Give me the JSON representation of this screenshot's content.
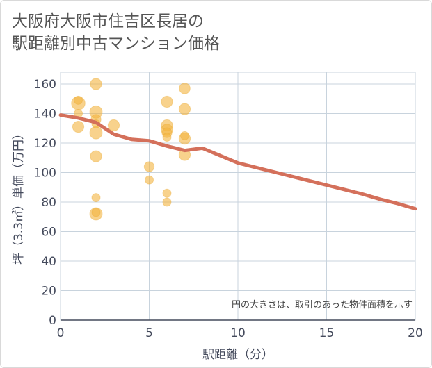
{
  "title_lines": [
    "大阪府大阪市住吉区長居の",
    "駅距離別中古マンション価格"
  ],
  "colors": {
    "bubble_fill": "#f3b440",
    "bubble_stroke": "#e9a52c",
    "line": "#d4705b",
    "grid": "#c8d3dd",
    "axis": "#444a5c"
  },
  "chart_data": {
    "type": "scatter",
    "xlabel": "駅距離（分）",
    "ylabel": "坪（3.3㎡）単価（万円）",
    "xlim": [
      0,
      20
    ],
    "ylim": [
      0,
      168
    ],
    "xticks": [
      0,
      5,
      10,
      15,
      20
    ],
    "yticks": [
      0,
      20,
      40,
      60,
      80,
      100,
      120,
      140,
      160
    ],
    "note": "円の大きさは、取引のあった物件面積を示す",
    "bubbles": [
      {
        "x": 1,
        "y": 147,
        "size": 3
      },
      {
        "x": 1,
        "y": 149,
        "size": 1
      },
      {
        "x": 1,
        "y": 140,
        "size": 1
      },
      {
        "x": 1,
        "y": 131,
        "size": 2
      },
      {
        "x": 2,
        "y": 160,
        "size": 2
      },
      {
        "x": 2,
        "y": 141,
        "size": 2.5
      },
      {
        "x": 2,
        "y": 136,
        "size": 1.5
      },
      {
        "x": 2,
        "y": 133,
        "size": 1
      },
      {
        "x": 2,
        "y": 127,
        "size": 2.5
      },
      {
        "x": 2,
        "y": 111,
        "size": 2
      },
      {
        "x": 2,
        "y": 83,
        "size": 1
      },
      {
        "x": 2,
        "y": 72,
        "size": 2.5
      },
      {
        "x": 2,
        "y": 73,
        "size": 1
      },
      {
        "x": 3,
        "y": 132,
        "size": 2
      },
      {
        "x": 5,
        "y": 104,
        "size": 1.5
      },
      {
        "x": 5,
        "y": 95,
        "size": 1
      },
      {
        "x": 6,
        "y": 148,
        "size": 2
      },
      {
        "x": 6,
        "y": 132,
        "size": 2
      },
      {
        "x": 6,
        "y": 129,
        "size": 2
      },
      {
        "x": 6,
        "y": 127,
        "size": 1.5
      },
      {
        "x": 6,
        "y": 124,
        "size": 1
      },
      {
        "x": 6,
        "y": 86,
        "size": 1
      },
      {
        "x": 6,
        "y": 80,
        "size": 1
      },
      {
        "x": 7,
        "y": 157,
        "size": 1.8
      },
      {
        "x": 7,
        "y": 143,
        "size": 2
      },
      {
        "x": 7,
        "y": 125,
        "size": 1
      },
      {
        "x": 7,
        "y": 123,
        "size": 2
      },
      {
        "x": 7,
        "y": 112,
        "size": 2
      }
    ],
    "trend_line": {
      "x": [
        0,
        1,
        2,
        3,
        4,
        5,
        6,
        7,
        8,
        9,
        10,
        11,
        12,
        13,
        14,
        15,
        16,
        17,
        18,
        19,
        20
      ],
      "y": [
        139,
        137,
        134,
        126,
        122.5,
        121.5,
        118,
        115,
        116.5,
        111.5,
        106.5,
        103.5,
        100.5,
        97.5,
        94.5,
        91.5,
        88.5,
        85.5,
        82,
        79,
        75.5
      ]
    }
  }
}
